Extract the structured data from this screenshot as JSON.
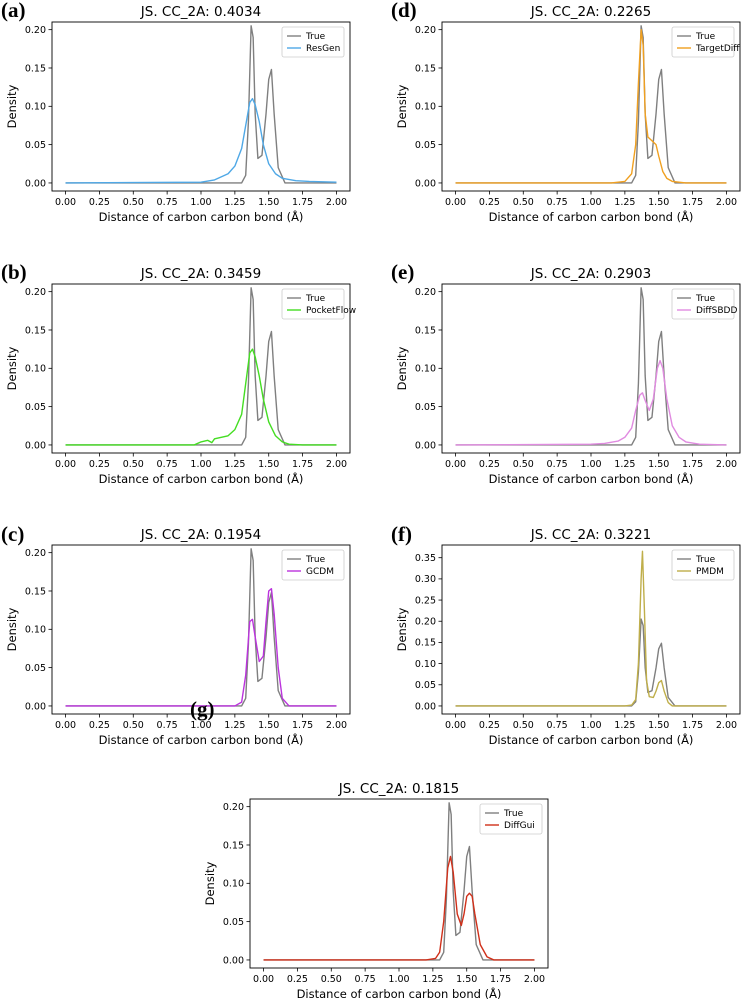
{
  "chart_data": [
    {
      "panel": "(a)",
      "type": "line",
      "title": "JS. CC_2A: 0.4034",
      "xlabel": "Distance of carbon carbon bond (Å)",
      "ylabel": "Density",
      "xlim": [
        0,
        2
      ],
      "ylim": [
        0,
        0.21
      ],
      "xticks": [
        "0.00",
        "0.25",
        "0.50",
        "0.75",
        "1.00",
        "1.25",
        "1.50",
        "1.75",
        "2.00"
      ],
      "yticks": [
        "0.00",
        "0.05",
        "0.10",
        "0.15",
        "0.20"
      ],
      "legend_position": "top-right",
      "series": [
        {
          "name": "True",
          "color": "#7f7f7f",
          "x": [
            0,
            1.2,
            1.3,
            1.33,
            1.35,
            1.37,
            1.385,
            1.4,
            1.42,
            1.45,
            1.48,
            1.5,
            1.52,
            1.54,
            1.57,
            1.62,
            2
          ],
          "y": [
            0,
            0,
            0,
            0.01,
            0.08,
            0.205,
            0.19,
            0.09,
            0.032,
            0.036,
            0.09,
            0.135,
            0.148,
            0.09,
            0.02,
            0,
            0
          ]
        },
        {
          "name": "ResGen",
          "color": "#4fa8e6",
          "x": [
            0,
            1.0,
            1.1,
            1.2,
            1.25,
            1.3,
            1.33,
            1.36,
            1.38,
            1.4,
            1.43,
            1.46,
            1.5,
            1.55,
            1.6,
            1.7,
            1.8,
            2
          ],
          "y": [
            0,
            0.001,
            0.004,
            0.012,
            0.022,
            0.045,
            0.075,
            0.105,
            0.11,
            0.102,
            0.08,
            0.05,
            0.025,
            0.012,
            0.006,
            0.003,
            0.002,
            0.001
          ]
        }
      ]
    },
    {
      "panel": "(b)",
      "type": "line",
      "title": "JS. CC_2A: 0.3459",
      "xlabel": "Distance of carbon carbon bond (Å)",
      "ylabel": "Density",
      "xlim": [
        0,
        2
      ],
      "ylim": [
        0,
        0.21
      ],
      "xticks": [
        "0.00",
        "0.25",
        "0.50",
        "0.75",
        "1.00",
        "1.25",
        "1.50",
        "1.75",
        "2.00"
      ],
      "yticks": [
        "0.00",
        "0.05",
        "0.10",
        "0.15",
        "0.20"
      ],
      "legend_position": "top-right",
      "series": [
        {
          "name": "True",
          "color": "#7f7f7f",
          "x": [
            0,
            1.2,
            1.3,
            1.33,
            1.35,
            1.37,
            1.385,
            1.4,
            1.42,
            1.45,
            1.48,
            1.5,
            1.52,
            1.54,
            1.57,
            1.62,
            2
          ],
          "y": [
            0,
            0,
            0,
            0.01,
            0.08,
            0.205,
            0.19,
            0.09,
            0.032,
            0.036,
            0.09,
            0.135,
            0.148,
            0.09,
            0.02,
            0,
            0
          ]
        },
        {
          "name": "PocketFlow",
          "color": "#44dd22",
          "x": [
            0,
            0.95,
            1.0,
            1.05,
            1.08,
            1.1,
            1.15,
            1.2,
            1.25,
            1.3,
            1.33,
            1.36,
            1.38,
            1.4,
            1.43,
            1.46,
            1.5,
            1.55,
            1.6,
            1.65,
            1.75,
            2
          ],
          "y": [
            0,
            0,
            0.004,
            0.006,
            0.003,
            0.008,
            0.01,
            0.012,
            0.02,
            0.04,
            0.08,
            0.12,
            0.125,
            0.115,
            0.09,
            0.06,
            0.03,
            0.012,
            0.004,
            0.001,
            0,
            0
          ]
        }
      ]
    },
    {
      "panel": "(c)",
      "type": "line",
      "title": "JS. CC_2A: 0.1954",
      "xlabel": "Distance of carbon carbon bond (Å)",
      "ylabel": "Density",
      "xlim": [
        0,
        2
      ],
      "ylim": [
        0,
        0.21
      ],
      "xticks": [
        "0.00",
        "0.25",
        "0.50",
        "0.75",
        "1.00",
        "1.25",
        "1.50",
        "1.75",
        "2.00"
      ],
      "yticks": [
        "0.00",
        "0.05",
        "0.10",
        "0.15",
        "0.20"
      ],
      "legend_position": "top-right",
      "series": [
        {
          "name": "True",
          "color": "#7f7f7f",
          "x": [
            0,
            1.2,
            1.3,
            1.33,
            1.35,
            1.37,
            1.385,
            1.4,
            1.42,
            1.45,
            1.48,
            1.5,
            1.52,
            1.54,
            1.57,
            1.62,
            2
          ],
          "y": [
            0,
            0,
            0,
            0.01,
            0.08,
            0.205,
            0.19,
            0.09,
            0.032,
            0.036,
            0.09,
            0.135,
            0.148,
            0.09,
            0.02,
            0,
            0
          ]
        },
        {
          "name": "GCDM",
          "color": "#bb33dd",
          "x": [
            0,
            1.25,
            1.3,
            1.33,
            1.36,
            1.38,
            1.4,
            1.43,
            1.46,
            1.48,
            1.5,
            1.52,
            1.54,
            1.57,
            1.6,
            1.65,
            2
          ],
          "y": [
            0,
            0,
            0.005,
            0.04,
            0.11,
            0.113,
            0.09,
            0.058,
            0.065,
            0.11,
            0.15,
            0.153,
            0.12,
            0.05,
            0.01,
            0,
            0
          ]
        }
      ]
    },
    {
      "panel": "(d)",
      "type": "line",
      "title": "JS. CC_2A: 0.2265",
      "xlabel": "Distance of carbon carbon bond (Å)",
      "ylabel": "Density",
      "xlim": [
        0,
        2
      ],
      "ylim": [
        0,
        0.21
      ],
      "xticks": [
        "0.00",
        "0.25",
        "0.50",
        "0.75",
        "1.00",
        "1.25",
        "1.50",
        "1.75",
        "2.00"
      ],
      "yticks": [
        "0.00",
        "0.05",
        "0.10",
        "0.15",
        "0.20"
      ],
      "legend_position": "top-right",
      "series": [
        {
          "name": "True",
          "color": "#7f7f7f",
          "x": [
            0,
            1.2,
            1.3,
            1.33,
            1.35,
            1.37,
            1.385,
            1.4,
            1.42,
            1.45,
            1.48,
            1.5,
            1.52,
            1.54,
            1.57,
            1.62,
            2
          ],
          "y": [
            0,
            0,
            0,
            0.01,
            0.08,
            0.205,
            0.19,
            0.09,
            0.032,
            0.036,
            0.09,
            0.135,
            0.148,
            0.09,
            0.02,
            0,
            0
          ]
        },
        {
          "name": "TargetDiff",
          "color": "#f0a020",
          "x": [
            0,
            1.15,
            1.25,
            1.3,
            1.33,
            1.35,
            1.37,
            1.385,
            1.4,
            1.42,
            1.45,
            1.48,
            1.5,
            1.53,
            1.56,
            1.6,
            1.7,
            2
          ],
          "y": [
            0,
            0,
            0.002,
            0.012,
            0.05,
            0.13,
            0.2,
            0.18,
            0.09,
            0.06,
            0.055,
            0.05,
            0.035,
            0.015,
            0.006,
            0.002,
            0,
            0
          ]
        }
      ]
    },
    {
      "panel": "(e)",
      "type": "line",
      "title": "JS. CC_2A: 0.2903",
      "xlabel": "Distance of carbon carbon bond (Å)",
      "ylabel": "Density",
      "xlim": [
        0,
        2
      ],
      "ylim": [
        0,
        0.21
      ],
      "xticks": [
        "0.00",
        "0.25",
        "0.50",
        "0.75",
        "1.00",
        "1.25",
        "1.50",
        "1.75",
        "2.00"
      ],
      "yticks": [
        "0.00",
        "0.05",
        "0.10",
        "0.15",
        "0.20"
      ],
      "legend_position": "top-right",
      "series": [
        {
          "name": "True",
          "color": "#7f7f7f",
          "x": [
            0,
            1.2,
            1.3,
            1.33,
            1.35,
            1.37,
            1.385,
            1.4,
            1.42,
            1.45,
            1.48,
            1.5,
            1.52,
            1.54,
            1.57,
            1.62,
            2
          ],
          "y": [
            0,
            0,
            0,
            0.01,
            0.08,
            0.205,
            0.19,
            0.09,
            0.032,
            0.036,
            0.09,
            0.135,
            0.148,
            0.09,
            0.02,
            0,
            0
          ]
        },
        {
          "name": "DiffSBDD",
          "color": "#e08be0",
          "x": [
            0,
            1.0,
            1.1,
            1.2,
            1.25,
            1.3,
            1.33,
            1.36,
            1.38,
            1.4,
            1.43,
            1.46,
            1.49,
            1.51,
            1.53,
            1.56,
            1.6,
            1.65,
            1.7,
            1.8,
            2
          ],
          "y": [
            0,
            0.001,
            0.002,
            0.005,
            0.01,
            0.022,
            0.045,
            0.065,
            0.068,
            0.058,
            0.045,
            0.06,
            0.1,
            0.11,
            0.1,
            0.06,
            0.025,
            0.01,
            0.004,
            0.001,
            0
          ]
        }
      ]
    },
    {
      "panel": "(f)",
      "type": "line",
      "title": "JS. CC_2A: 0.3221",
      "xlabel": "Distance of carbon carbon bond (Å)",
      "ylabel": "Density",
      "xlim": [
        0,
        2
      ],
      "ylim": [
        0,
        0.38
      ],
      "xticks": [
        "0.00",
        "0.25",
        "0.50",
        "0.75",
        "1.00",
        "1.25",
        "1.50",
        "1.75",
        "2.00"
      ],
      "yticks": [
        "0.00",
        "0.05",
        "0.10",
        "0.15",
        "0.20",
        "0.25",
        "0.30",
        "0.35"
      ],
      "legend_position": "top-right",
      "series": [
        {
          "name": "True",
          "color": "#7f7f7f",
          "x": [
            0,
            1.2,
            1.3,
            1.33,
            1.35,
            1.37,
            1.385,
            1.4,
            1.42,
            1.45,
            1.48,
            1.5,
            1.52,
            1.54,
            1.57,
            1.62,
            2
          ],
          "y": [
            0,
            0,
            0,
            0.01,
            0.08,
            0.205,
            0.19,
            0.09,
            0.032,
            0.036,
            0.09,
            0.135,
            0.148,
            0.09,
            0.02,
            0,
            0
          ]
        },
        {
          "name": "PMDM",
          "color": "#bfae4a",
          "x": [
            0,
            1.25,
            1.3,
            1.33,
            1.35,
            1.37,
            1.38,
            1.395,
            1.41,
            1.43,
            1.46,
            1.48,
            1.5,
            1.52,
            1.54,
            1.57,
            1.6,
            2
          ],
          "y": [
            0,
            0,
            0.002,
            0.015,
            0.1,
            0.3,
            0.365,
            0.22,
            0.06,
            0.022,
            0.02,
            0.035,
            0.055,
            0.06,
            0.035,
            0.008,
            0,
            0
          ]
        }
      ]
    },
    {
      "panel": "(g)",
      "type": "line",
      "title": "JS. CC_2A: 0.1815",
      "xlabel": "Distance of carbon carbon bond (Å)",
      "ylabel": "Density",
      "xlim": [
        0,
        2
      ],
      "ylim": [
        0,
        0.21
      ],
      "xticks": [
        "0.00",
        "0.25",
        "0.50",
        "0.75",
        "1.00",
        "1.25",
        "1.50",
        "1.75",
        "2.00"
      ],
      "yticks": [
        "0.00",
        "0.05",
        "0.10",
        "0.15",
        "0.20"
      ],
      "legend_position": "top-right",
      "series": [
        {
          "name": "True",
          "color": "#7f7f7f",
          "x": [
            0,
            1.2,
            1.3,
            1.33,
            1.35,
            1.37,
            1.385,
            1.4,
            1.42,
            1.45,
            1.48,
            1.5,
            1.52,
            1.54,
            1.57,
            1.62,
            2
          ],
          "y": [
            0,
            0,
            0,
            0.01,
            0.08,
            0.205,
            0.19,
            0.09,
            0.032,
            0.036,
            0.09,
            0.135,
            0.148,
            0.09,
            0.02,
            0,
            0
          ]
        },
        {
          "name": "DiffGui",
          "color": "#d0301a",
          "x": [
            0,
            1.2,
            1.27,
            1.3,
            1.33,
            1.36,
            1.38,
            1.4,
            1.43,
            1.46,
            1.48,
            1.5,
            1.52,
            1.54,
            1.56,
            1.6,
            1.65,
            1.7,
            2
          ],
          "y": [
            0,
            0,
            0.002,
            0.01,
            0.05,
            0.12,
            0.135,
            0.115,
            0.06,
            0.045,
            0.06,
            0.083,
            0.087,
            0.083,
            0.06,
            0.02,
            0.004,
            0,
            0
          ]
        }
      ]
    }
  ]
}
